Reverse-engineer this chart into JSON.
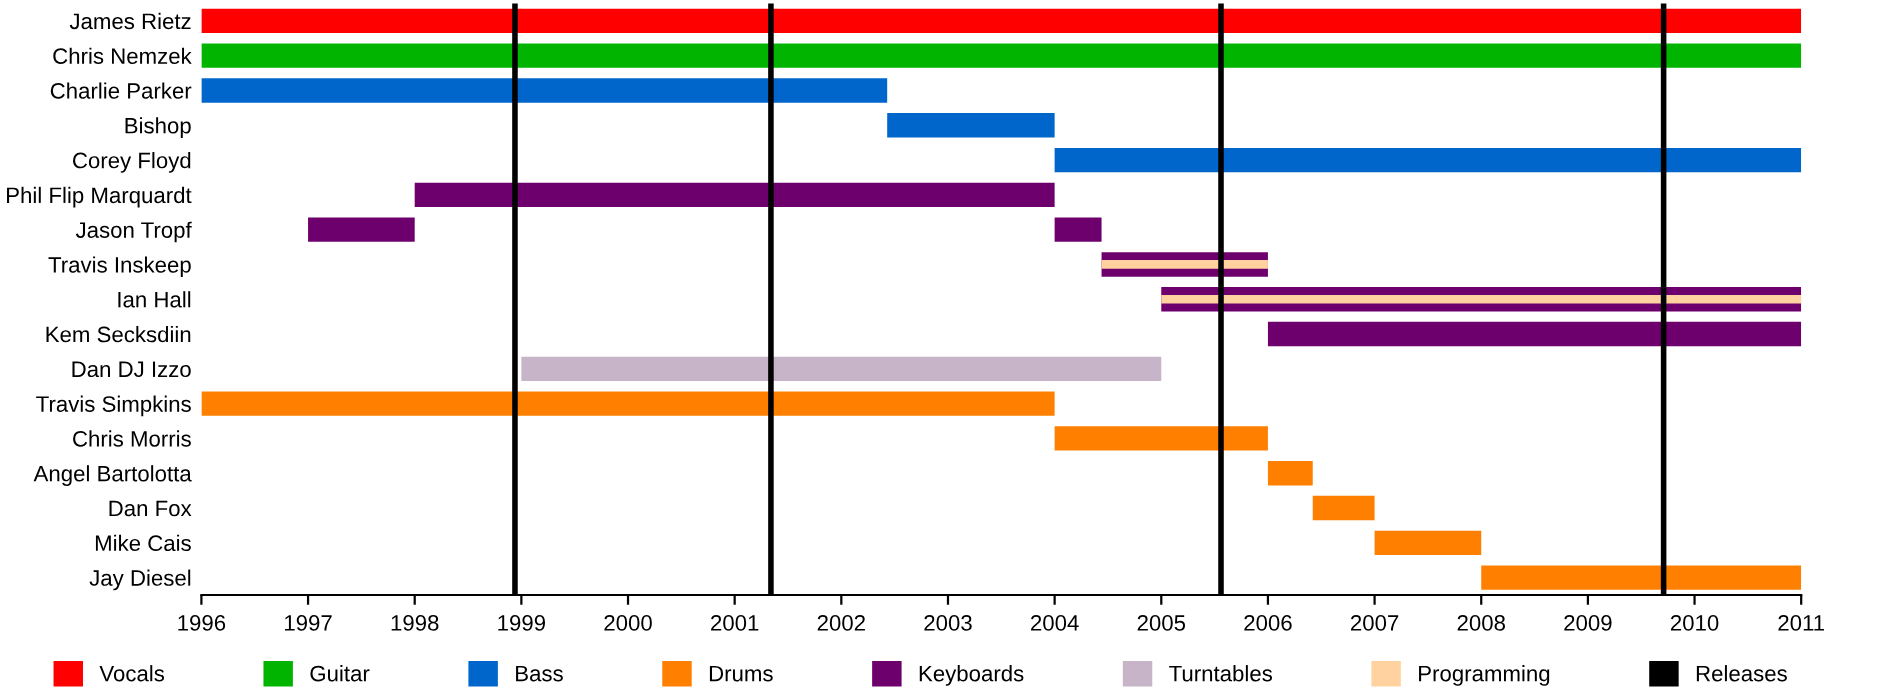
{
  "chart_data": {
    "type": "bar",
    "orientation": "horizontal",
    "legend": "bottom",
    "grid": false,
    "categories": [
      "James Rietz",
      "Chris Nemzek",
      "Charlie Parker",
      "Bishop",
      "Corey Floyd",
      "Phil Flip Marquardt",
      "Jason Tropf",
      "Travis Inskeep",
      "Ian Hall",
      "Kem Secksdiin",
      "Dan DJ Izzo",
      "Travis Simpkins",
      "Chris Morris",
      "Angel Bartolotta",
      "Dan Fox",
      "Mike Cais",
      "Jay Diesel"
    ],
    "xlim": [
      1996,
      2011
    ],
    "xticks": [
      1996,
      1997,
      1998,
      1999,
      2000,
      2001,
      2002,
      2003,
      2004,
      2005,
      2006,
      2007,
      2008,
      2009,
      2010,
      2011
    ],
    "series": [
      {
        "name": "Vocals",
        "color": "#ff0000",
        "base": [
          1996,
          null,
          null,
          null,
          null,
          null,
          null,
          null,
          null,
          null,
          null,
          null,
          null,
          null,
          null,
          null,
          null
        ],
        "values": [
          15,
          null,
          null,
          null,
          null,
          null,
          null,
          null,
          null,
          null,
          null,
          null,
          null,
          null,
          null,
          null,
          null
        ]
      },
      {
        "name": "Guitar",
        "color": "#00b400",
        "base": [
          null,
          1996,
          null,
          null,
          null,
          null,
          null,
          null,
          null,
          null,
          null,
          null,
          null,
          null,
          null,
          null,
          null
        ],
        "values": [
          null,
          15,
          null,
          null,
          null,
          null,
          null,
          null,
          null,
          null,
          null,
          null,
          null,
          null,
          null,
          null,
          null
        ]
      },
      {
        "name": "Bass",
        "color": "#0066cc",
        "base": [
          null,
          null,
          1996,
          2002.43,
          2004,
          null,
          null,
          null,
          null,
          null,
          null,
          null,
          null,
          null,
          null,
          null,
          null
        ],
        "values": [
          null,
          null,
          6.43,
          1.57,
          7,
          null,
          null,
          null,
          null,
          null,
          null,
          null,
          null,
          null,
          null,
          null,
          null
        ]
      },
      {
        "name": "Drums",
        "color": "#ff8000",
        "base": [
          null,
          null,
          null,
          null,
          null,
          null,
          null,
          null,
          null,
          null,
          null,
          1996,
          2004,
          2006,
          2006.42,
          2007,
          2008
        ],
        "values": [
          null,
          null,
          null,
          null,
          null,
          null,
          null,
          null,
          null,
          null,
          null,
          8,
          2,
          0.42,
          0.58,
          1,
          3
        ]
      },
      {
        "name": "Keyboards",
        "color": "#6e006e",
        "base": [
          null,
          null,
          null,
          null,
          null,
          1998,
          1997,
          2004.44,
          2005,
          2006,
          null,
          null,
          null,
          null,
          null,
          null,
          null
        ],
        "values": [
          null,
          null,
          null,
          null,
          null,
          6,
          1,
          1.56,
          6,
          5,
          null,
          null,
          null,
          null,
          null,
          null,
          null
        ]
      },
      {
        "color": "#6e006e",
        "base": [
          null,
          null,
          null,
          null,
          null,
          null,
          2004,
          null,
          null,
          null,
          null,
          null,
          null,
          null,
          null,
          null,
          null
        ],
        "values": [
          null,
          null,
          null,
          null,
          null,
          null,
          0.44,
          null,
          null,
          null,
          null,
          null,
          null,
          null,
          null,
          null,
          null
        ]
      },
      {
        "name": "Turntables",
        "color": "#c8b4c8",
        "base": [
          null,
          null,
          null,
          null,
          null,
          null,
          null,
          null,
          null,
          null,
          1999,
          null,
          null,
          null,
          null,
          null,
          null
        ],
        "values": [
          null,
          null,
          null,
          null,
          null,
          null,
          null,
          null,
          null,
          null,
          6,
          null,
          null,
          null,
          null,
          null,
          null
        ]
      },
      {
        "name": "Programming",
        "color": "#ffd2a0",
        "base": [
          null,
          null,
          null,
          null,
          null,
          null,
          null,
          2004.44,
          2005,
          null,
          null,
          null,
          null,
          null,
          null,
          null,
          null
        ],
        "values": [
          null,
          null,
          null,
          null,
          null,
          null,
          null,
          1.56,
          6,
          null,
          null,
          null,
          null,
          null,
          null,
          null,
          null
        ]
      }
    ],
    "ref_lines": [
      {
        "axis": "x",
        "value": 1998.94,
        "label": "Releases",
        "color": "#000000"
      },
      {
        "axis": "x",
        "value": 2001.34,
        "color": "#000000"
      },
      {
        "axis": "x",
        "value": 2005.56,
        "color": "#000000"
      },
      {
        "axis": "x",
        "value": 2009.71,
        "color": "#000000"
      }
    ]
  }
}
